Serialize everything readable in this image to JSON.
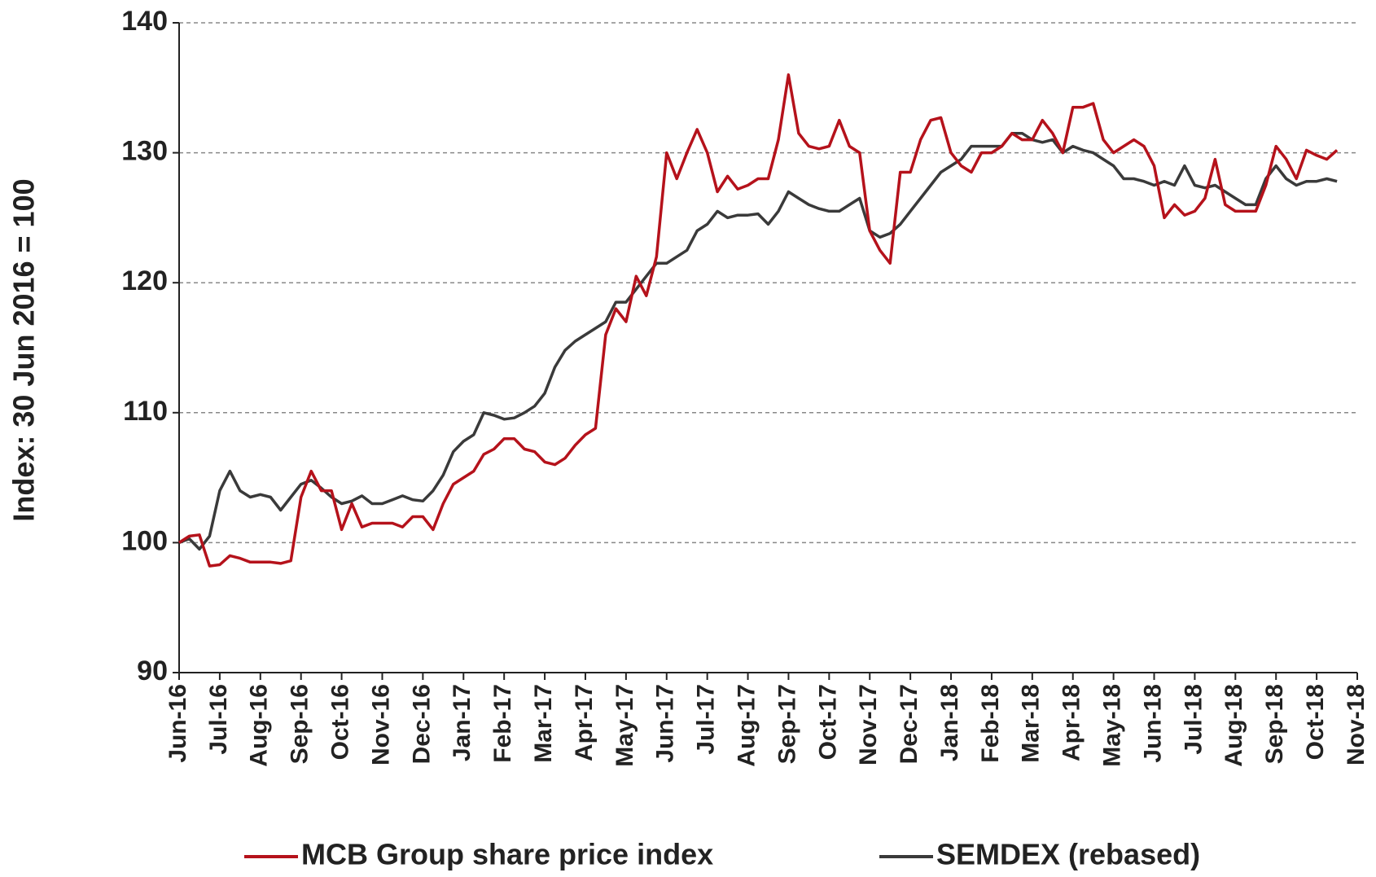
{
  "chart_data": {
    "type": "line",
    "y_label": "Index: 30 Jun 2016 = 100",
    "x": [
      0,
      0.25,
      0.5,
      0.75,
      1,
      1.25,
      1.5,
      1.75,
      2,
      2.25,
      2.5,
      2.75,
      3,
      3.25,
      3.5,
      3.75,
      4,
      4.25,
      4.5,
      4.75,
      5,
      5.25,
      5.5,
      5.75,
      6,
      6.25,
      6.5,
      6.75,
      7,
      7.25,
      7.5,
      7.75,
      8,
      8.25,
      8.5,
      8.75,
      9,
      9.25,
      9.5,
      9.75,
      10,
      10.25,
      10.5,
      10.75,
      11,
      11.25,
      11.5,
      11.75,
      12,
      12.25,
      12.5,
      12.75,
      13,
      13.25,
      13.5,
      13.75,
      14,
      14.25,
      14.5,
      14.75,
      15,
      15.25,
      15.5,
      15.75,
      16,
      16.25,
      16.5,
      16.75,
      17,
      17.25,
      17.5,
      17.75,
      18,
      18.25,
      18.5,
      18.75,
      19,
      19.25,
      19.5,
      19.75,
      20,
      20.25,
      20.5,
      20.75,
      21,
      21.25,
      21.5,
      21.75,
      22,
      22.25,
      22.5,
      22.75,
      23,
      23.25,
      23.5,
      23.75,
      24,
      24.25,
      24.5,
      24.75,
      25,
      25.25,
      25.5,
      25.75,
      26,
      26.25,
      26.5,
      26.75,
      27,
      27.25,
      27.5,
      27.75,
      28,
      28.25,
      28.5
    ],
    "series": [
      {
        "name": "MCB Group share price index",
        "color": "#b5121b",
        "values": [
          100,
          100.5,
          100.6,
          98.2,
          98.3,
          99.0,
          98.8,
          98.5,
          98.5,
          98.5,
          98.4,
          98.6,
          103.5,
          105.5,
          104,
          104,
          101,
          103,
          101.2,
          101.5,
          101.5,
          101.5,
          101.2,
          102,
          102,
          101,
          103,
          104.5,
          105,
          105.5,
          106.8,
          107.2,
          108,
          108,
          107.2,
          107,
          106.2,
          106,
          106.5,
          107.5,
          108.3,
          108.8,
          116,
          118,
          117,
          120.5,
          119,
          122,
          130,
          128,
          130,
          131.8,
          130,
          127,
          128.2,
          127.2,
          127.5,
          128,
          128,
          131,
          136,
          131.5,
          130.5,
          130.3,
          130.5,
          132.5,
          130.5,
          130,
          124,
          122.5,
          121.5,
          128.5,
          128.5,
          131,
          132.5,
          132.7,
          130,
          129,
          128.5,
          130,
          130,
          130.5,
          131.5,
          131,
          131,
          132.5,
          131.5,
          130,
          133.5,
          133.5,
          133.8,
          131,
          130,
          130.5,
          131,
          130.5,
          129,
          125,
          126,
          125.2,
          125.5,
          126.5,
          129.5,
          126,
          125.5,
          125.5,
          125.5,
          127.5,
          130.5,
          129.5,
          128,
          130.2,
          129.8,
          129.5,
          130.2
        ]
      },
      {
        "name": "SEMDEX (rebased)",
        "color": "#3a3a3a",
        "values": [
          100,
          100.3,
          99.5,
          100.5,
          104,
          105.5,
          104,
          103.5,
          103.7,
          103.5,
          102.5,
          103.5,
          104.5,
          104.8,
          104.2,
          103.5,
          103,
          103.2,
          103.6,
          103,
          103,
          103.3,
          103.6,
          103.3,
          103.2,
          104,
          105.2,
          107,
          107.8,
          108.3,
          110,
          109.8,
          109.5,
          109.6,
          110,
          110.5,
          111.5,
          113.5,
          114.8,
          115.5,
          116,
          116.5,
          117,
          118.5,
          118.5,
          119.5,
          120.5,
          121.5,
          121.5,
          122,
          122.5,
          124,
          124.5,
          125.5,
          125,
          125.2,
          125.2,
          125.3,
          124.5,
          125.5,
          127,
          126.5,
          126,
          125.7,
          125.5,
          125.5,
          126,
          126.5,
          124,
          123.5,
          123.8,
          124.5,
          125.5,
          126.5,
          127.5,
          128.5,
          129,
          129.5,
          130.5,
          130.5,
          130.5,
          130.5,
          131.5,
          131.5,
          131,
          130.8,
          131,
          130,
          130.5,
          130.2,
          130,
          129.5,
          129,
          128,
          128,
          127.8,
          127.5,
          127.8,
          127.5,
          129,
          127.5,
          127.3,
          127.5,
          127,
          126.5,
          126,
          126,
          128,
          129,
          128,
          127.5,
          127.8,
          127.8,
          128,
          127.8
        ]
      }
    ],
    "xlim": [
      0,
      29
    ],
    "xticks": [
      {
        "value": 0,
        "label": "Jun-16"
      },
      {
        "value": 1,
        "label": "Jul-16"
      },
      {
        "value": 2,
        "label": "Aug-16"
      },
      {
        "value": 3,
        "label": "Sep-16"
      },
      {
        "value": 4,
        "label": "Oct-16"
      },
      {
        "value": 5,
        "label": "Nov-16"
      },
      {
        "value": 6,
        "label": "Dec-16"
      },
      {
        "value": 7,
        "label": "Jan-17"
      },
      {
        "value": 8,
        "label": "Feb-17"
      },
      {
        "value": 9,
        "label": "Mar-17"
      },
      {
        "value": 10,
        "label": "Apr-17"
      },
      {
        "value": 11,
        "label": "May-17"
      },
      {
        "value": 12,
        "label": "Jun-17"
      },
      {
        "value": 13,
        "label": "Jul-17"
      },
      {
        "value": 14,
        "label": "Aug-17"
      },
      {
        "value": 15,
        "label": "Sep-17"
      },
      {
        "value": 16,
        "label": "Oct-17"
      },
      {
        "value": 17,
        "label": "Nov-17"
      },
      {
        "value": 18,
        "label": "Dec-17"
      },
      {
        "value": 19,
        "label": "Jan-18"
      },
      {
        "value": 20,
        "label": "Feb-18"
      },
      {
        "value": 21,
        "label": "Mar-18"
      },
      {
        "value": 22,
        "label": "Apr-18"
      },
      {
        "value": 23,
        "label": "May-18"
      },
      {
        "value": 24,
        "label": "Jun-18"
      },
      {
        "value": 25,
        "label": "Jul-18"
      },
      {
        "value": 26,
        "label": "Aug-18"
      },
      {
        "value": 27,
        "label": "Sep-18"
      },
      {
        "value": 28,
        "label": "Oct-18"
      },
      {
        "value": 29,
        "label": "Nov-18"
      }
    ],
    "ylim": [
      90,
      140
    ],
    "yticks": [
      90,
      100,
      110,
      120,
      130,
      140
    ],
    "grid": true,
    "legend": "bottom"
  }
}
